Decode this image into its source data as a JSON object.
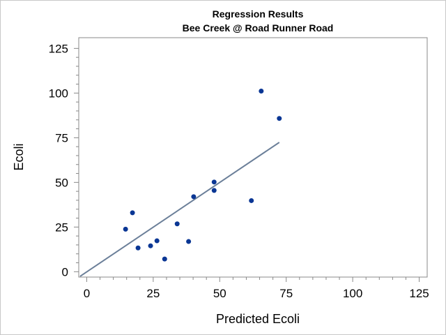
{
  "chart_data": {
    "type": "scatter",
    "title": "Regression Results",
    "subtitle": "Bee Creek @ Road Runner Road",
    "xlabel": "Predicted Ecoli",
    "ylabel": "Ecoli",
    "xlim": [
      -3,
      128
    ],
    "ylim": [
      -3,
      131
    ],
    "xticks": [
      0,
      25,
      50,
      75,
      100,
      125
    ],
    "yticks": [
      0,
      25,
      50,
      75,
      100,
      125
    ],
    "grid": false,
    "legend": "none",
    "marker_color": "#0a3694",
    "line_color": "#6b7f99",
    "points": [
      {
        "x": 14.6,
        "y": 23.8
      },
      {
        "x": 17.2,
        "y": 33.0
      },
      {
        "x": 19.3,
        "y": 13.3
      },
      {
        "x": 24.0,
        "y": 14.5
      },
      {
        "x": 26.4,
        "y": 17.3
      },
      {
        "x": 29.3,
        "y": 7.1
      },
      {
        "x": 34.0,
        "y": 26.8
      },
      {
        "x": 38.3,
        "y": 16.9
      },
      {
        "x": 40.2,
        "y": 42.0
      },
      {
        "x": 47.9,
        "y": 50.2
      },
      {
        "x": 47.9,
        "y": 45.5
      },
      {
        "x": 61.9,
        "y": 39.8
      },
      {
        "x": 65.6,
        "y": 101.1
      },
      {
        "x": 72.4,
        "y": 85.8
      }
    ],
    "fit_line": {
      "x": [
        -2.5,
        72.4
      ],
      "y": [
        -2.6,
        72.4
      ]
    }
  }
}
